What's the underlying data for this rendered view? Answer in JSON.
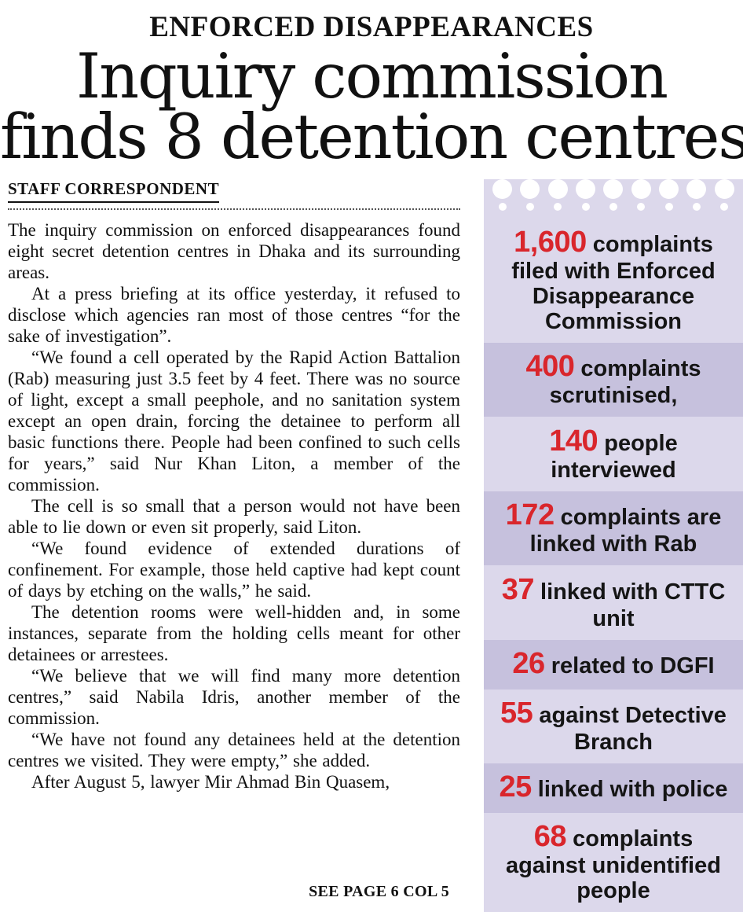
{
  "masthead": {
    "kicker": "ENFORCED DISAPPEARANCES",
    "headline_line1": "Inquiry commission",
    "headline_line2": "finds 8 detention centres"
  },
  "article": {
    "byline": "STAFF CORRESPONDENT",
    "paragraphs": [
      "The inquiry commission on enforced disappearances found eight secret detention centres in Dhaka and its surrounding areas.",
      "At a press briefing at its office yesterday, it refused to disclose which agencies ran most of those centres “for the sake of investigation”.",
      "“We found a cell operated by the Rapid Action Battalion (Rab) measuring just 3.5 feet by 4 feet. There was no source of light, except a small peephole, and no sanitation system except an open drain, forcing the detainee to perform all basic functions there. People had been confined to such cells for years,” said Nur Khan Liton, a member of the commission.",
      "The cell is so small that a person would not have been able to lie down or even sit properly, said Liton.",
      "“We found evidence of extended durations of confinement. For example, those held captive had kept count of days by etching on the walls,” he said.",
      "The detention rooms were well-hidden and, in some instances, separate from the holding cells meant for other detainees or arrestees.",
      "“We believe that we will find many more detention centres,” said Nabila Idris, another member of the commission.",
      "“We have not found any detainees held at the detention centres we visited. They were empty,” she added.",
      "After August 5, lawyer Mir Ahmad Bin Quasem,"
    ],
    "continuation": "SEE PAGE 6 COL 5"
  },
  "sidebar": {
    "stats": [
      {
        "number": "1,600",
        "text": "complaints filed with Enforced Disappearance Commission"
      },
      {
        "number": "400",
        "text": "complaints scrutinised,"
      },
      {
        "number": "140",
        "text": "people interviewed"
      },
      {
        "number": "172",
        "text": "complaints are linked with Rab"
      },
      {
        "number": "37",
        "text": "linked with CTTC unit"
      },
      {
        "number": "26",
        "text": "related to DGFI"
      },
      {
        "number": "55",
        "text": "against Detective Branch"
      },
      {
        "number": "25",
        "text": "linked with police"
      },
      {
        "number": "68",
        "text": "complaints against unidentified people"
      }
    ]
  },
  "colors": {
    "stat_number_red": "#d9262c",
    "sidebar_light": "#dcd8eb",
    "sidebar_dark": "#c6c1dd"
  }
}
